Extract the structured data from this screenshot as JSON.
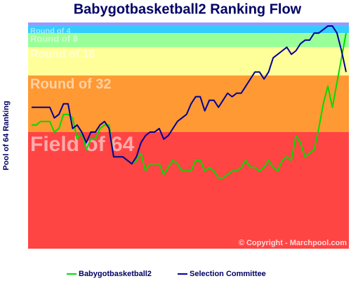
{
  "chart_data": {
    "type": "line",
    "title": "Babygotbasketball2 Ranking Flow",
    "y_label": "Pool of 64 Ranking",
    "annotation": "© Copyright - Marchpool.com",
    "ylim": [
      64,
      0
    ],
    "legend": "bottom",
    "bands": [
      {
        "from": 0,
        "to": 1,
        "color": "#9999ff"
      },
      {
        "label": "Round of 4",
        "from": 1,
        "to": 3,
        "color": "#33ccff"
      },
      {
        "label": "Round of 8",
        "from": 3,
        "to": 7,
        "color": "#99ff99"
      },
      {
        "label": "Round of 16",
        "from": 7,
        "to": 15,
        "color": "#ffff99"
      },
      {
        "label": "Round of 32",
        "from": 15,
        "to": 31,
        "color": "#ff9933"
      },
      {
        "label": "Field of 64",
        "from": 31,
        "to": 64,
        "color": "#ff4444"
      }
    ],
    "categories": [
      null,
      null,
      null,
      null,
      null,
      null,
      null,
      null,
      null,
      null,
      null,
      null,
      null,
      null,
      null,
      null,
      null,
      null,
      null,
      null,
      null,
      null,
      null,
      null,
      null,
      null,
      null,
      null,
      null,
      null,
      null,
      null,
      null,
      null,
      null,
      null,
      null,
      null,
      null,
      null,
      null,
      null,
      null,
      null,
      null,
      null,
      null,
      null,
      null,
      null,
      null,
      null,
      null,
      null,
      null,
      null,
      null,
      null,
      null,
      null,
      null,
      null,
      null,
      null,
      null,
      null,
      null,
      null,
      null,
      null
    ],
    "series": [
      {
        "name": "Babygotbasketball2",
        "color": "#00dd00",
        "values": [
          29,
          29,
          28,
          28,
          28,
          31,
          30,
          26,
          26,
          27,
          33,
          31,
          36,
          33,
          33,
          30,
          29,
          29,
          38,
          38,
          38,
          39,
          40,
          39,
          37,
          42,
          40,
          40,
          40,
          43,
          41,
          39,
          40,
          42,
          42,
          42,
          39,
          39,
          42,
          41,
          42,
          44,
          44,
          43,
          42,
          42,
          41,
          39,
          41,
          41,
          42,
          41,
          39,
          41,
          42,
          39,
          38,
          39,
          32,
          34,
          38,
          37,
          36,
          30,
          23,
          18,
          24,
          17,
          10,
          3
        ]
      },
      {
        "name": "Selection Committee",
        "color": "#000099",
        "values": [
          24,
          24,
          24,
          24,
          24,
          27,
          26,
          23,
          23,
          30,
          29,
          31,
          34,
          31,
          31,
          29,
          28,
          30,
          38,
          38,
          38,
          39,
          40,
          38,
          34,
          32,
          31,
          31,
          30,
          33,
          32,
          30,
          28,
          27,
          26,
          23,
          21,
          21,
          25,
          22,
          22,
          24,
          22,
          20,
          21,
          20,
          20,
          18,
          16,
          14,
          14,
          16,
          14,
          10,
          9,
          8,
          7,
          9,
          8,
          6,
          5,
          5,
          3,
          3,
          2,
          1,
          1,
          3,
          8,
          14
        ]
      }
    ]
  }
}
